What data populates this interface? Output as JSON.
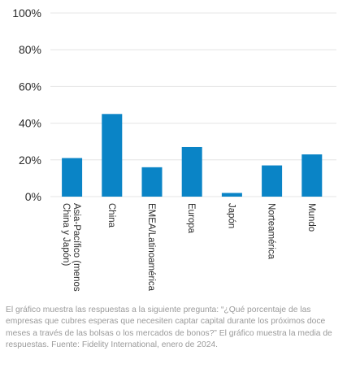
{
  "chart_data": {
    "type": "bar",
    "categories": [
      "Asia-Pacífico (menos China y Japón)",
      "China",
      "EMEA/Latinoamérica",
      "Europa",
      "Japón",
      "Norteamérica",
      "Mundo"
    ],
    "category_lines": [
      [
        "Asia-Pacífico (menos",
        "China y Japón)"
      ],
      [
        "China"
      ],
      [
        "EMEA/Latinoamérica"
      ],
      [
        "Europa"
      ],
      [
        "Japón"
      ],
      [
        "Norteamérica"
      ],
      [
        "Mundo"
      ]
    ],
    "values": [
      21,
      45,
      16,
      27,
      2,
      17,
      23
    ],
    "ylim": [
      0,
      100
    ],
    "yticks": [
      0,
      20,
      40,
      60,
      80,
      100
    ],
    "ytick_labels": [
      "0%",
      "20%",
      "40%",
      "60%",
      "80%",
      "100%"
    ],
    "title": "",
    "xlabel": "",
    "ylabel": "",
    "grid": true,
    "bar_color": "#0a84c6",
    "grid_color": "#e4e4e4",
    "text_color": "#2b2b2b"
  },
  "caption": "El gráfico muestra las respuestas a la siguiente pregunta: “¿Qué porcentaje de las empresas que cubres esperas que necesiten captar capital durante los próximos doce meses a través de las bolsas o los mercados de bonos?” El gráfico muestra la media de respuestas. Fuente: Fidelity International, enero de 2024."
}
